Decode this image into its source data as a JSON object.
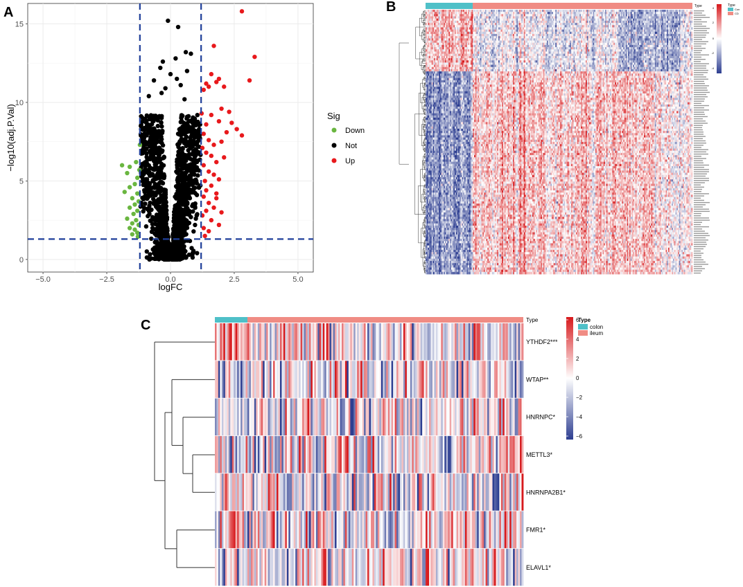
{
  "panels": {
    "a": "A",
    "b": "B",
    "c": "C"
  },
  "colors": {
    "down": "#6ab640",
    "not": "#000000",
    "up": "#e8191c",
    "threshold": "#1f3f9a",
    "grid": "#ebebeb",
    "con": "#4fc0c8",
    "cd": "#f08c84",
    "heat_low": "#2d3e91",
    "heat_mid": "#ffffff",
    "heat_high": "#d7191c"
  },
  "chart_data": [
    {
      "type": "scatter",
      "panel": "A",
      "title": "",
      "xlabel": "logFC",
      "ylabel": "−log10(adj.P.Val)",
      "xlim": [
        -5.6,
        5.6
      ],
      "ylim": [
        -0.8,
        16.3
      ],
      "x_ticks": [
        -5,
        -2.5,
        0,
        2.5,
        5
      ],
      "x_tick_labels": [
        "−5.0",
        "−2.5",
        "0.0",
        "2.5",
        "5.0"
      ],
      "y_ticks": [
        0,
        5,
        10,
        15
      ],
      "y_tick_labels": [
        "0",
        "5",
        "10",
        "15"
      ],
      "thresholds": {
        "logFC": [
          -1.2,
          1.2
        ],
        "neglog10_p": 1.3
      },
      "legend": {
        "title": "Sig",
        "items": [
          "Down",
          "Not",
          "Up"
        ]
      },
      "series": [
        {
          "name": "Down",
          "points": [
            [
              -1.9,
              6.0
            ],
            [
              -1.6,
              5.9
            ],
            [
              -1.7,
              5.5
            ],
            [
              -1.3,
              5.2
            ],
            [
              -1.4,
              4.8
            ],
            [
              -1.6,
              4.6
            ],
            [
              -1.8,
              4.3
            ],
            [
              -1.3,
              4.2
            ],
            [
              -1.5,
              3.9
            ],
            [
              -1.25,
              3.7
            ],
            [
              -1.4,
              3.5
            ],
            [
              -1.6,
              3.3
            ],
            [
              -1.3,
              3.1
            ],
            [
              -1.45,
              2.9
            ],
            [
              -1.7,
              2.6
            ],
            [
              -1.35,
              2.5
            ],
            [
              -1.5,
              2.3
            ],
            [
              -1.25,
              2.2
            ],
            [
              -1.6,
              2.0
            ],
            [
              -1.4,
              1.9
            ],
            [
              -1.3,
              1.7
            ],
            [
              -1.5,
              1.6
            ],
            [
              -1.28,
              1.45
            ],
            [
              -1.2,
              7.3
            ],
            [
              -1.35,
              6.2
            ],
            [
              -1.22,
              5.7
            ]
          ]
        },
        {
          "name": "Up",
          "points": [
            [
              2.8,
              15.8
            ],
            [
              3.3,
              12.9
            ],
            [
              3.1,
              11.4
            ],
            [
              1.7,
              13.6
            ],
            [
              1.8,
              11.3
            ],
            [
              1.9,
              11.5
            ],
            [
              1.6,
              11.8
            ],
            [
              2.1,
              11.0
            ],
            [
              1.5,
              11.0
            ],
            [
              1.4,
              11.2
            ],
            [
              1.3,
              10.8
            ],
            [
              2.0,
              9.6
            ],
            [
              2.3,
              9.4
            ],
            [
              1.6,
              9.2
            ],
            [
              1.9,
              8.8
            ],
            [
              2.4,
              8.7
            ],
            [
              2.6,
              8.3
            ],
            [
              2.8,
              7.9
            ],
            [
              2.2,
              8.1
            ],
            [
              1.4,
              8.6
            ],
            [
              1.3,
              8.0
            ],
            [
              1.5,
              7.6
            ],
            [
              1.7,
              7.3
            ],
            [
              2.0,
              7.5
            ],
            [
              1.25,
              7.1
            ],
            [
              1.4,
              6.8
            ],
            [
              1.6,
              6.6
            ],
            [
              1.8,
              6.2
            ],
            [
              2.1,
              6.5
            ],
            [
              1.3,
              6.0
            ],
            [
              1.5,
              5.6
            ],
            [
              1.7,
              5.4
            ],
            [
              1.9,
              5.1
            ],
            [
              1.35,
              5.0
            ],
            [
              1.6,
              4.7
            ],
            [
              1.4,
              4.4
            ],
            [
              1.8,
              4.2
            ],
            [
              1.3,
              4.0
            ],
            [
              1.5,
              3.6
            ],
            [
              1.7,
              3.3
            ],
            [
              1.4,
              3.1
            ],
            [
              1.25,
              2.8
            ],
            [
              1.6,
              2.5
            ],
            [
              1.9,
              2.2
            ],
            [
              1.3,
              2.0
            ],
            [
              1.5,
              1.8
            ],
            [
              1.35,
              1.5
            ],
            [
              1.8,
              3.9
            ],
            [
              2.0,
              3.0
            ],
            [
              1.22,
              9.3
            ]
          ]
        },
        {
          "name": "Not",
          "points": [
            [
              -0.1,
              15.2
            ],
            [
              0.3,
              14.8
            ],
            [
              0.6,
              13.2
            ],
            [
              0.8,
              13.1
            ],
            [
              0.2,
              12.8
            ],
            [
              -0.4,
              12.2
            ],
            [
              -0.3,
              12.6
            ],
            [
              0.65,
              12.0
            ],
            [
              -0.65,
              11.4
            ],
            [
              0.4,
              11.1
            ],
            [
              -0.35,
              10.6
            ],
            [
              -0.85,
              10.4
            ],
            [
              0.0,
              11.8
            ],
            [
              0.25,
              11.5
            ],
            [
              -0.2,
              10.9
            ],
            [
              0.55,
              10.2
            ]
          ]
        }
      ]
    },
    {
      "type": "heatmap",
      "panel": "B",
      "title": "",
      "color_scale": {
        "min": -4,
        "max": 4,
        "ticks": [
          "4",
          "2",
          "0",
          "-2",
          "-4"
        ]
      },
      "annotation": {
        "label": "Type",
        "groups": [
          "Con",
          "CD"
        ]
      },
      "row_count": 120,
      "column_count": 220
    },
    {
      "type": "heatmap",
      "panel": "C",
      "title": "",
      "rows": [
        "YTHDF2***",
        "WTAP**",
        "HNRNPC*",
        "METTL3*",
        "HNRNPA2B1*",
        "FMR1*",
        "ELAVL1*"
      ],
      "color_scale": {
        "min": -6,
        "max": 6,
        "ticks": [
          "6",
          "4",
          "2",
          "0",
          "−2",
          "−4",
          "−6"
        ]
      },
      "annotation": {
        "label": "Type",
        "groups": [
          "colon",
          "ileum"
        ]
      },
      "column_count": 180
    }
  ]
}
